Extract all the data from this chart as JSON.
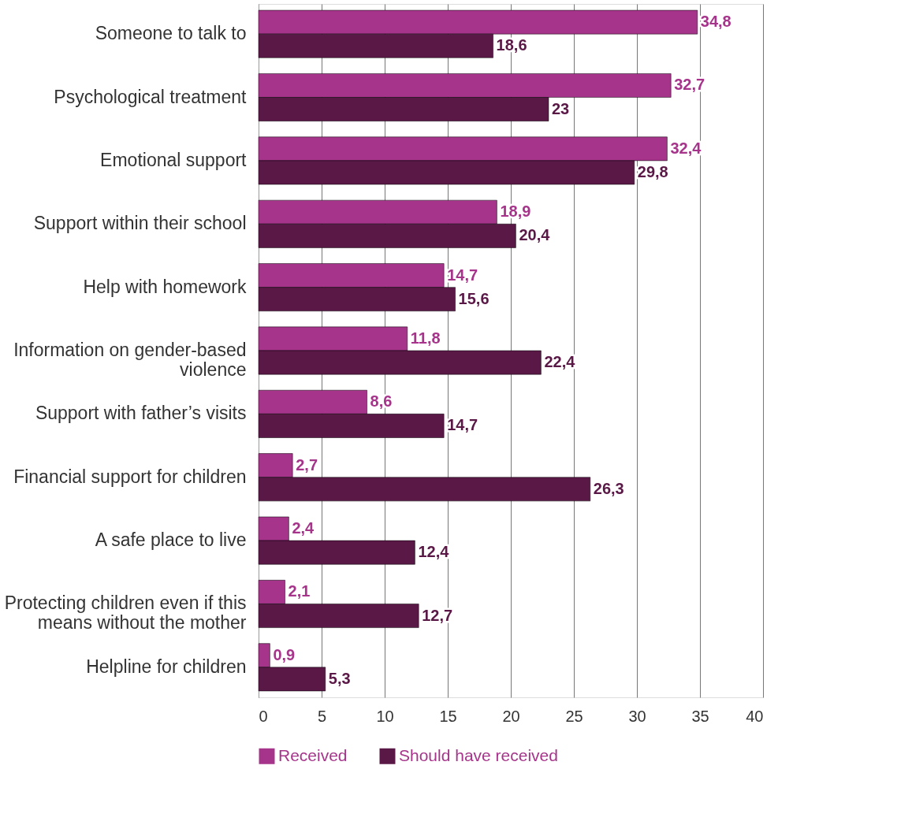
{
  "chart_data": {
    "type": "bar",
    "orientation": "horizontal",
    "categories": [
      "Someone to talk to",
      "Psychological treatment",
      "Emotional support",
      "Support within their school",
      "Help with homework",
      "Information on gender-based violence",
      "Support with father’s visits",
      "Financial support for children",
      "A safe place to live",
      "Protecting children even if this means without the mother",
      "Helpline for children"
    ],
    "series": [
      {
        "name": "Received",
        "color": "#a5348a",
        "values": [
          34.8,
          32.7,
          32.4,
          18.9,
          14.7,
          11.8,
          8.6,
          2.7,
          2.4,
          2.1,
          0.9
        ],
        "value_labels": [
          "34,8",
          "32,7",
          "32,4",
          "18,9",
          "14,7",
          "11,8",
          "8,6",
          "2,7",
          "2,4",
          "2,1",
          "0,9"
        ]
      },
      {
        "name": "Should have received",
        "color": "#5a1846",
        "values": [
          18.6,
          23,
          29.8,
          20.4,
          15.6,
          22.4,
          14.7,
          26.3,
          12.4,
          12.7,
          5.3
        ],
        "value_labels": [
          "18,6",
          "23",
          "29,8",
          "20,4",
          "15,6",
          "22,4",
          "14,7",
          "26,3",
          "12,4",
          "12,7",
          "5,3"
        ]
      }
    ],
    "xlim": [
      0,
      40
    ],
    "xticks": [
      0,
      5,
      10,
      15,
      20,
      25,
      30,
      35,
      40
    ],
    "grid": "x",
    "legend": "bottom"
  }
}
